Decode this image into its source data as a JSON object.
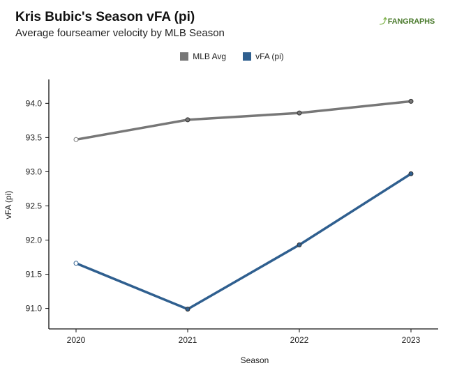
{
  "header": {
    "title": "Kris Bubic's Season vFA (pi)",
    "subtitle": "Average fourseamer velocity by MLB Season",
    "brand": "FANGRAPHS"
  },
  "colors": {
    "mlb_avg": "#777777",
    "vfa": "#2f5f8f",
    "axis": "#111111"
  },
  "chart_data": {
    "type": "line",
    "categories": [
      "2020",
      "2021",
      "2022",
      "2023"
    ],
    "xlabel": "Season",
    "ylabel": "vFA (pi)",
    "ylim": [
      90.7,
      94.35
    ],
    "yticks": [
      "91.0",
      "91.5",
      "92.0",
      "92.5",
      "93.0",
      "93.5",
      "94.0"
    ],
    "grid": false,
    "legend_position": "top-center",
    "series": [
      {
        "name": "MLB Avg",
        "values": [
          93.47,
          93.76,
          93.86,
          94.03
        ],
        "color": "#777777"
      },
      {
        "name": "vFA (pi)",
        "values": [
          91.66,
          90.99,
          91.93,
          92.97
        ],
        "color": "#2f5f8f"
      }
    ]
  }
}
